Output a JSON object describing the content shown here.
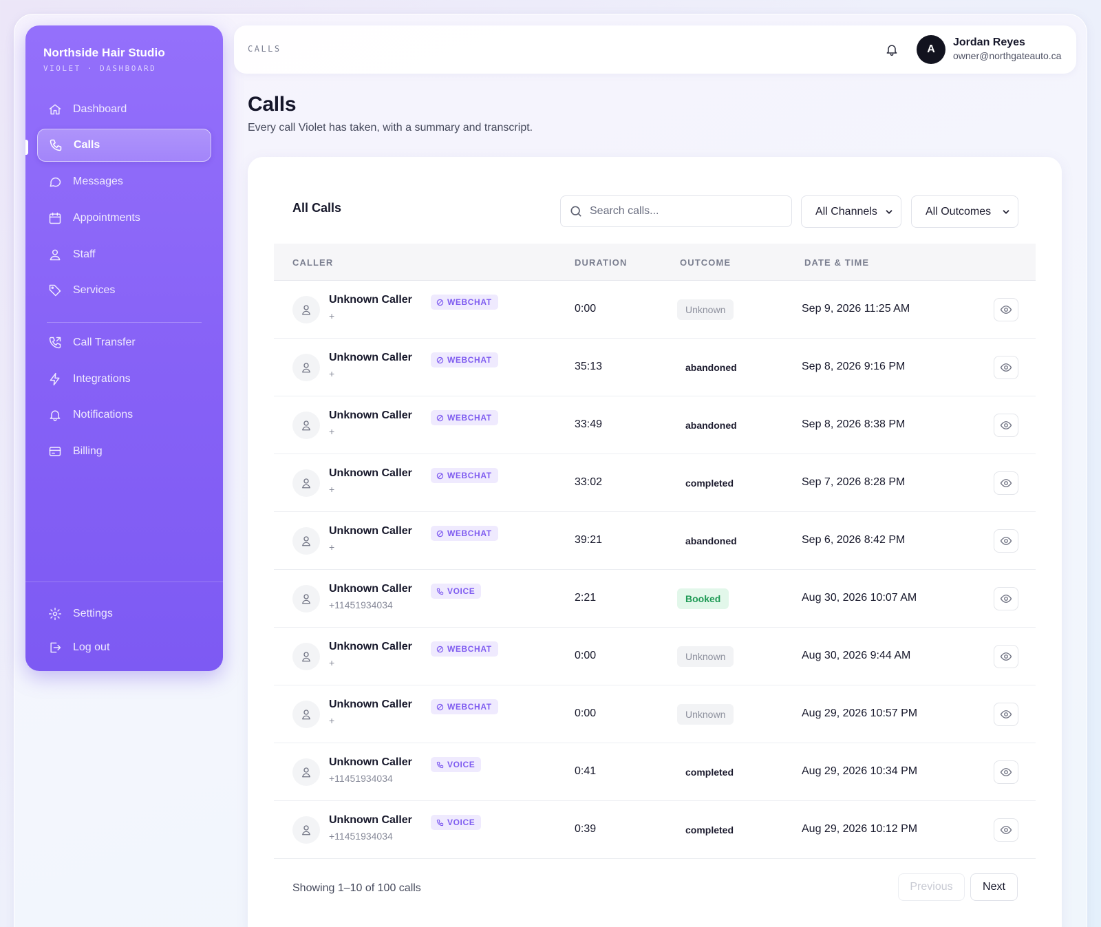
{
  "sidebar": {
    "brand_name": "Northside Hair Studio",
    "brand_sub": "VIOLET · DASHBOARD",
    "items": [
      {
        "label": "Dashboard",
        "icon": "home-icon"
      },
      {
        "label": "Calls",
        "icon": "phone-icon",
        "active": true
      },
      {
        "label": "Messages",
        "icon": "message-icon"
      },
      {
        "label": "Appointments",
        "icon": "calendar-icon"
      },
      {
        "label": "Staff",
        "icon": "users-icon"
      },
      {
        "label": "Services",
        "icon": "tag-icon"
      },
      {
        "label": "Call Transfer",
        "icon": "phone-forward-icon"
      },
      {
        "label": "Integrations",
        "icon": "bolt-icon"
      },
      {
        "label": "Notifications",
        "icon": "bell-icon"
      },
      {
        "label": "Billing",
        "icon": "card-icon"
      }
    ],
    "footer": [
      {
        "label": "Settings",
        "icon": "gear-icon"
      },
      {
        "label": "Log out",
        "icon": "logout-icon"
      }
    ]
  },
  "topbar": {
    "breadcrumb": "CALLS",
    "avatar_initial": "A",
    "user_name": "Jordan Reyes",
    "user_email": "owner@northgateauto.ca"
  },
  "page": {
    "title": "Calls",
    "subtitle": "Every call Violet has taken, with a summary and transcript."
  },
  "card": {
    "title": "All Calls",
    "search_placeholder": "Search calls...",
    "channel_filter": "All Channels",
    "outcome_filter": "All Outcomes",
    "columns": [
      "CALLER",
      "DURATION",
      "OUTCOME",
      "DATE & TIME"
    ],
    "rows": [
      {
        "caller": "Unknown Caller",
        "number": "+",
        "channel": "WEBCHAT",
        "duration": "0:00",
        "outcome": "Unknown",
        "outcome_style": "unknown",
        "datetime": "Sep 9, 2026 11:25 AM"
      },
      {
        "caller": "Unknown Caller",
        "number": "+",
        "channel": "WEBCHAT",
        "duration": "35:13",
        "outcome": "abandoned",
        "outcome_style": "plain",
        "datetime": "Sep 8, 2026 9:16 PM"
      },
      {
        "caller": "Unknown Caller",
        "number": "+",
        "channel": "WEBCHAT",
        "duration": "33:49",
        "outcome": "abandoned",
        "outcome_style": "plain",
        "datetime": "Sep 8, 2026 8:38 PM"
      },
      {
        "caller": "Unknown Caller",
        "number": "+",
        "channel": "WEBCHAT",
        "duration": "33:02",
        "outcome": "completed",
        "outcome_style": "plain",
        "datetime": "Sep 7, 2026 8:28 PM"
      },
      {
        "caller": "Unknown Caller",
        "number": "+",
        "channel": "WEBCHAT",
        "duration": "39:21",
        "outcome": "abandoned",
        "outcome_style": "plain",
        "datetime": "Sep 6, 2026 8:42 PM"
      },
      {
        "caller": "Unknown Caller",
        "number": "+11451934034",
        "channel": "VOICE",
        "duration": "2:21",
        "outcome": "Booked",
        "outcome_style": "booked",
        "datetime": "Aug 30, 2026 10:07 AM"
      },
      {
        "caller": "Unknown Caller",
        "number": "+",
        "channel": "WEBCHAT",
        "duration": "0:00",
        "outcome": "Unknown",
        "outcome_style": "unknown",
        "datetime": "Aug 30, 2026 9:44 AM"
      },
      {
        "caller": "Unknown Caller",
        "number": "+",
        "channel": "WEBCHAT",
        "duration": "0:00",
        "outcome": "Unknown",
        "outcome_style": "unknown",
        "datetime": "Aug 29, 2026 10:57 PM"
      },
      {
        "caller": "Unknown Caller",
        "number": "+11451934034",
        "channel": "VOICE",
        "duration": "0:41",
        "outcome": "completed",
        "outcome_style": "plain",
        "datetime": "Aug 29, 2026 10:34 PM"
      },
      {
        "caller": "Unknown Caller",
        "number": "+11451934034",
        "channel": "VOICE",
        "duration": "0:39",
        "outcome": "completed",
        "outcome_style": "plain",
        "datetime": "Aug 29, 2026 10:12 PM"
      }
    ],
    "footer_text": "Showing 1–10 of 100 calls",
    "prev_label": "Previous",
    "next_label": "Next"
  },
  "colors": {
    "sidebar_top": "#9470fb",
    "sidebar_bottom": "#7d5af3",
    "channel_badge_text": "#7f5cf0",
    "booked_text": "#1f9a55"
  }
}
